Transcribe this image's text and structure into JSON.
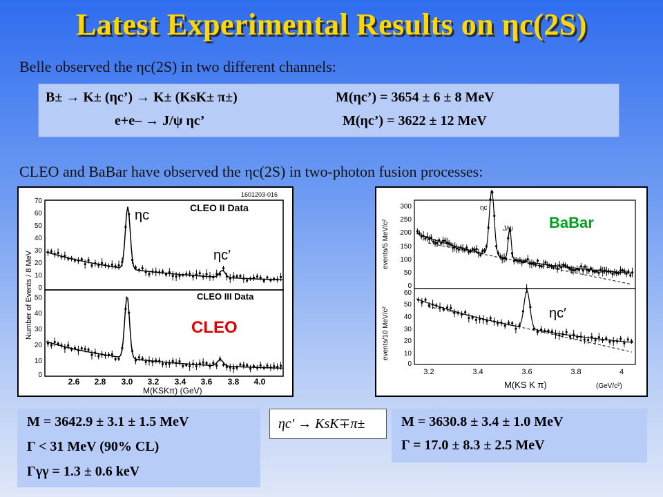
{
  "title": "Latest Experimental Results on ηc(2S)",
  "belle_intro": "Belle observed the ηc(2S) in two different channels:",
  "belle_box": {
    "row1_reaction": "B± → K± (ηc’) → K± (KsK± π±)",
    "row1_mass": "M(ηc’) = 3654 ± 6 ± 8 MeV",
    "row2_reaction": "e+e– → J/ψ ηc’",
    "row2_mass": "M(ηc’) = 3622 ± 12 MeV"
  },
  "fusion_intro": "CLEO and BaBar have observed the ηc(2S) in two-photon fusion processes:",
  "cleo_plot": {
    "header_id": "1601203-016",
    "top_label": "CLEO II Data",
    "bottom_label": "CLEO III Data",
    "experiment": "CLEO",
    "ylabel": "Number of Events / 8 MeV",
    "xlabel": "M(KSKπ) (GeV)",
    "peak1_label": "ηc",
    "peak2_label": "ηc′",
    "top_yticks": [
      "70",
      "60",
      "50",
      "40",
      "30",
      "20",
      "10",
      "0"
    ],
    "bottom_yticks": [
      "50",
      "40",
      "30",
      "20",
      "10",
      "0"
    ],
    "xticks": [
      "2.6",
      "2.8",
      "3.0",
      "3.2",
      "3.4",
      "3.6",
      "3.8",
      "4.0"
    ]
  },
  "babar_plot": {
    "experiment": "BaBar",
    "top_ylabel": "events/5 MeV/c²",
    "bottom_ylabel": "events/10 MeV/c²",
    "top_yticks": [
      "300",
      "250",
      "200",
      "150",
      "100",
      "50",
      "0"
    ],
    "bottom_yticks": [
      "60",
      "50",
      "40",
      "30",
      "20",
      "10",
      "0"
    ],
    "xticks": [
      "3.2",
      "3.4",
      "3.6",
      "3.8",
      "4"
    ],
    "xlabel": "M(KS K π)",
    "xunit": "(GeV/c²)",
    "peak_labels": [
      "ηc",
      "J/ψ"
    ],
    "etac_prime_label": "ηc′"
  },
  "cleo_results": {
    "mass": "M = 3642.9 ± 3.1 ± 1.5 MeV",
    "width": "Γ < 31 MeV (90% CL)",
    "gg_width": "Γγγ = 1.3 ± 0.6 keV"
  },
  "decay_formula": "ηc′ → KsK∓π±",
  "babar_results": {
    "mass": "M = 3630.8 ± 3.4 ± 1.0 MeV",
    "width": "Γ = 17.0 ± 8.3 ± 2.5 MeV"
  },
  "colors": {
    "title": "#ffd800",
    "cleo_label": "#e00000",
    "babar_label": "#00a020"
  }
}
